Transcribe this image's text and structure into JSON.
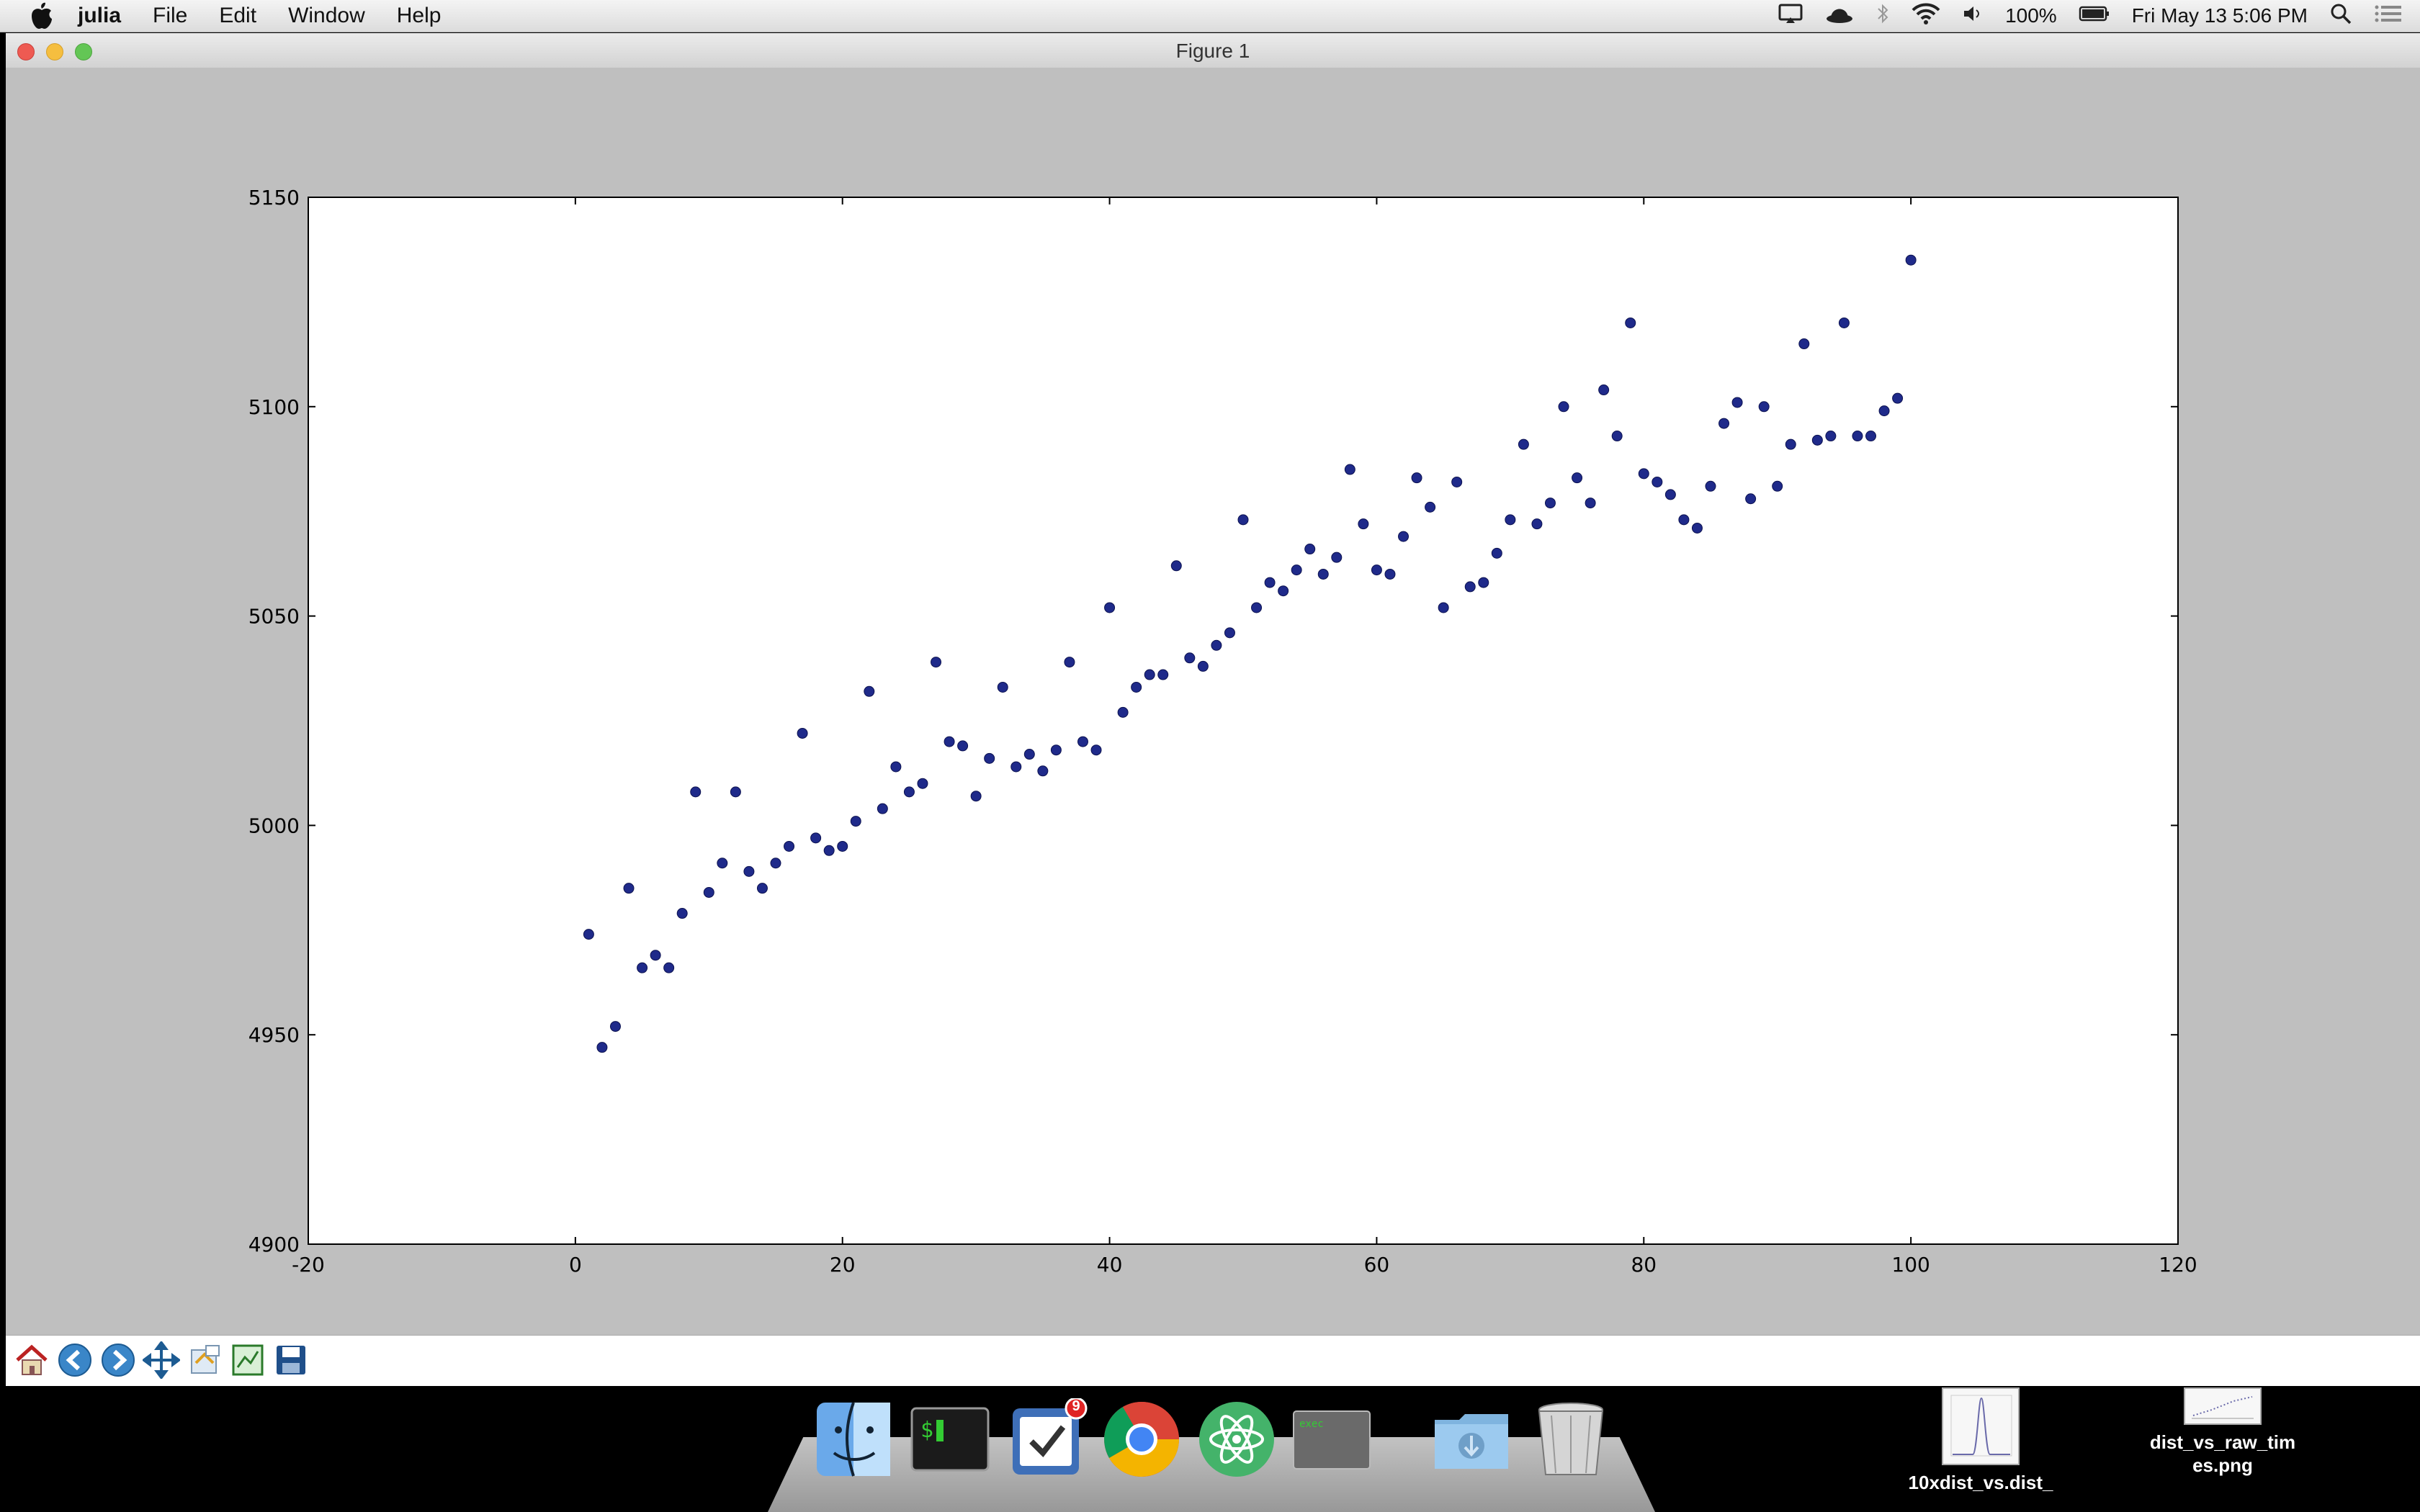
{
  "menubar": {
    "app_name": "julia",
    "items": [
      "File",
      "Edit",
      "Window",
      "Help"
    ],
    "battery": "100%",
    "clock": "Fri May 13  5:06 PM"
  },
  "window": {
    "title": "Figure 1"
  },
  "icons": {
    "toolbar": [
      "home-icon",
      "back-icon",
      "forward-icon",
      "pan-icon",
      "zoom-icon",
      "subplots-icon",
      "save-icon"
    ],
    "dock": [
      "finder-icon",
      "terminal-icon",
      "tasks-icon",
      "chrome-icon",
      "atom-icon",
      "exec-terminal-icon",
      "downloads-folder-icon",
      "trash-icon"
    ]
  },
  "dock": {
    "tasks_badge": "9"
  },
  "desktop": {
    "files": [
      {
        "label": "10xdist_vs.dist_"
      },
      {
        "label": "dist_vs_raw_tim\nes.png"
      }
    ]
  },
  "chart_data": {
    "type": "scatter",
    "title": "",
    "xlabel": "",
    "ylabel": "",
    "xlim": [
      -20,
      120
    ],
    "ylim": [
      4900,
      5150
    ],
    "xticks": [
      -20,
      0,
      20,
      40,
      60,
      80,
      100,
      120
    ],
    "yticks": [
      4900,
      4950,
      5000,
      5050,
      5100,
      5150
    ],
    "grid": false,
    "marker_color": "#1f2a8a",
    "series": [
      {
        "x": [
          1,
          2,
          3,
          4,
          5,
          6,
          7,
          8,
          9,
          10,
          11,
          12,
          13,
          14,
          15,
          16,
          17,
          18,
          19,
          20,
          21,
          22,
          23,
          24,
          25,
          26,
          27,
          28,
          29,
          30,
          31,
          32,
          33,
          34,
          35,
          36,
          37,
          38,
          39,
          40,
          41,
          42,
          43,
          44,
          45,
          46,
          47,
          48,
          49,
          50,
          51,
          52,
          53,
          54,
          55,
          56,
          57,
          58,
          59,
          60,
          61,
          62,
          63,
          64,
          65,
          66,
          67,
          68,
          69,
          70,
          71,
          72,
          73,
          74,
          75,
          76,
          77,
          78,
          79,
          80,
          81,
          82,
          83,
          84,
          85,
          86,
          87,
          88,
          89,
          90,
          91,
          92,
          93,
          94,
          95,
          96,
          97,
          98,
          99,
          100
        ],
        "y": [
          4974,
          4947,
          4952,
          4985,
          4966,
          4969,
          4966,
          4979,
          5008,
          4984,
          4991,
          5008,
          4989,
          4985,
          4991,
          4995,
          5022,
          4997,
          4994,
          4995,
          5001,
          5032,
          5004,
          5014,
          5008,
          5010,
          5039,
          5020,
          5019,
          5007,
          5016,
          5033,
          5014,
          5017,
          5013,
          5018,
          5039,
          5020,
          5018,
          5052,
          5027,
          5033,
          5036,
          5036,
          5062,
          5040,
          5038,
          5043,
          5046,
          5073,
          5052,
          5058,
          5056,
          5061,
          5066,
          5060,
          5064,
          5085,
          5072,
          5061,
          5060,
          5069,
          5083,
          5076,
          5052,
          5082,
          5057,
          5058,
          5065,
          5073,
          5091,
          5072,
          5077,
          5100,
          5083,
          5077,
          5104,
          5093,
          5120,
          5084,
          5082,
          5079,
          5073,
          5071,
          5081,
          5096,
          5101,
          5078,
          5100,
          5081,
          5091,
          5115,
          5092,
          5093,
          5120,
          5093,
          5093,
          5099,
          5102,
          5135
        ]
      }
    ]
  }
}
